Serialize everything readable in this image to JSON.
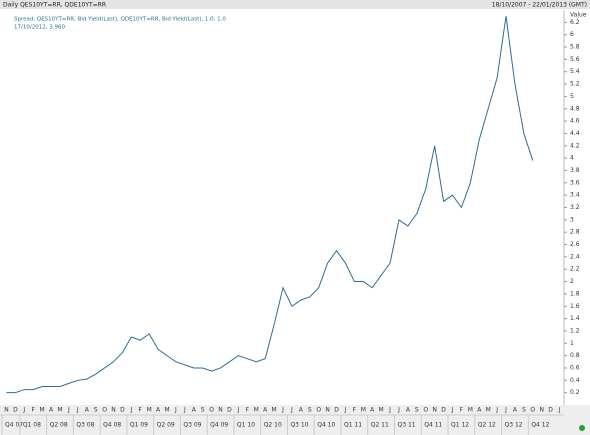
{
  "header": {
    "left": "Daily QES10YT=RR, QDE10YT=RR",
    "right": "18/10/2007 - 22/01/2013 (GMT)"
  },
  "chart_data": {
    "type": "line",
    "legend_lines": [
      "Spread, QES10YT=RR, Bid Yield(Last), QDE10YT=RR, Bid Yield(Last), 1.0, 1.0",
      "17/10/2012, 3.960"
    ],
    "y_label": "Value",
    "categories": [
      "N",
      "D",
      "J",
      "F",
      "M",
      "A",
      "M",
      "J",
      "J",
      "A",
      "S",
      "O",
      "N",
      "D",
      "J",
      "F",
      "M",
      "A",
      "M",
      "J",
      "J",
      "A",
      "S",
      "O",
      "N",
      "D",
      "J",
      "F",
      "M",
      "A",
      "M",
      "J",
      "J",
      "A",
      "S",
      "O",
      "N",
      "D",
      "J",
      "F",
      "M",
      "A",
      "M",
      "J",
      "J",
      "A",
      "S",
      "O",
      "N",
      "D",
      "J",
      "F",
      "M",
      "A",
      "M",
      "J",
      "J",
      "A",
      "S",
      "O",
      "N",
      "D",
      "J"
    ],
    "quarters": [
      "Q4 07",
      "Q1 08",
      "Q2 08",
      "Q3 08",
      "Q4 08",
      "Q1 09",
      "Q2 09",
      "Q3 09",
      "Q4 09",
      "Q1 10",
      "Q2 10",
      "Q3 10",
      "Q4 10",
      "Q1 11",
      "Q2 11",
      "Q3 11",
      "Q4 11",
      "Q1 12",
      "Q2 12",
      "Q3 12",
      "Q4 12"
    ],
    "series": [
      {
        "name": "Spread",
        "color": "#2a6f97",
        "values": [
          0.2,
          0.2,
          0.25,
          0.25,
          0.3,
          0.3,
          0.3,
          0.35,
          0.4,
          0.42,
          0.5,
          0.6,
          0.7,
          0.85,
          1.1,
          1.05,
          1.15,
          0.9,
          0.8,
          0.7,
          0.65,
          0.6,
          0.6,
          0.55,
          0.6,
          0.7,
          0.8,
          0.75,
          0.7,
          0.75,
          1.3,
          1.9,
          1.6,
          1.7,
          1.75,
          1.9,
          2.3,
          2.5,
          2.3,
          2.0,
          2.0,
          1.9,
          2.1,
          2.3,
          3.0,
          2.9,
          3.1,
          3.5,
          4.2,
          3.3,
          3.4,
          3.2,
          3.6,
          4.3,
          4.8,
          5.3,
          6.3,
          5.2,
          4.4,
          3.96,
          null,
          null,
          null
        ]
      }
    ],
    "ylim": [
      0,
      6.4
    ],
    "yticks": [
      0.2,
      0.4,
      0.6,
      0.8,
      1,
      1.2,
      1.4,
      1.6,
      1.8,
      2,
      2.2,
      2.4,
      2.6,
      2.8,
      3,
      3.2,
      3.4,
      3.6,
      3.8,
      4,
      4.2,
      4.4,
      4.6,
      4.8,
      5,
      5.2,
      5.4,
      5.6,
      5.8,
      6,
      6.2
    ]
  }
}
